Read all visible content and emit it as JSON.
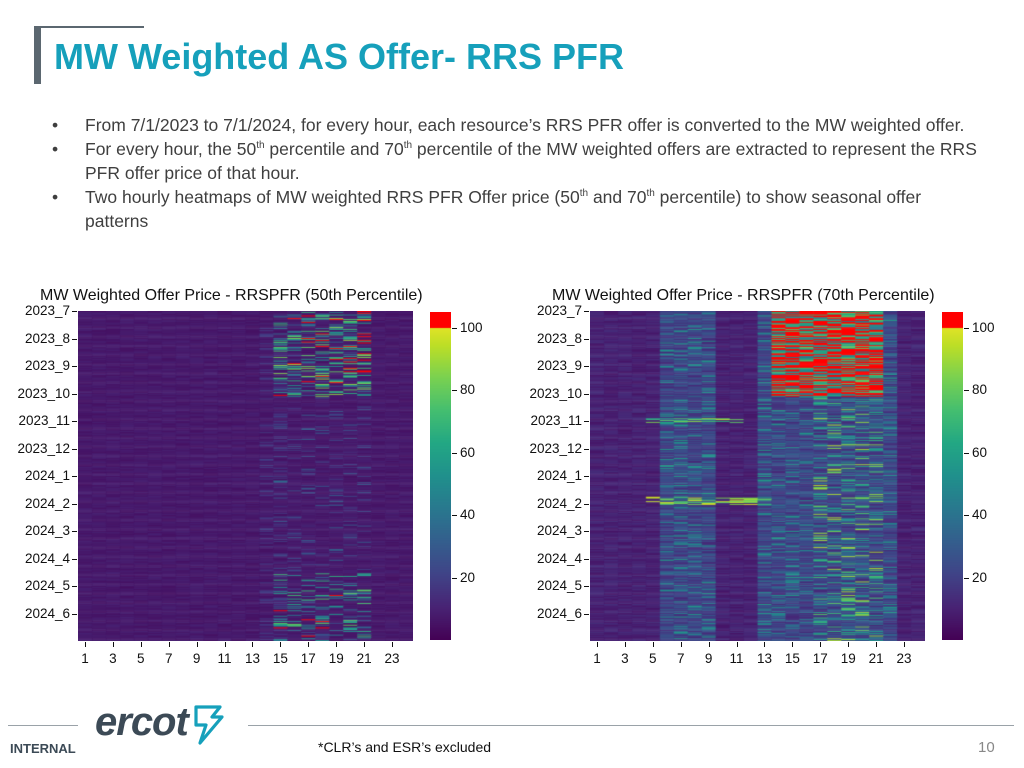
{
  "slide": {
    "title": "MW Weighted AS Offer- RRS PFR",
    "bullets": [
      {
        "pre": "From 7/1/2023 to 7/1/2024, for every hour, each resource’s RRS PFR offer is converted to the MW weighted offer."
      },
      {
        "pre": "For every hour, the 50",
        "sup1": "th",
        "mid": " percentile and 70",
        "sup2": "th",
        "post": " percentile of the MW weighted offers are extracted to represent the RRS PFR offer price of that hour."
      },
      {
        "pre": "Two hourly heatmaps of MW weighted RRS PFR Offer price (50",
        "sup1": "th",
        "mid": " and 70",
        "sup2": "th",
        "post": " percentile) to show seasonal offer patterns"
      }
    ],
    "bullet_symbol": "•",
    "footer": {
      "logo_text": "ercot",
      "internal_label": "INTERNAL",
      "note": "*CLR’s and ESR’s excluded",
      "page_number": "10"
    }
  },
  "chart_data": [
    {
      "type": "heatmap",
      "title": "MW Weighted Offer Price - RRSPFR (50th Percentile)",
      "y_tick_labels": [
        "2023_7",
        "2023_8",
        "2023_9",
        "2023_10",
        "2023_11",
        "2023_12",
        "2024_1",
        "2024_2",
        "2024_3",
        "2024_4",
        "2024_5",
        "2024_6"
      ],
      "x_tick_labels": [
        "1",
        "3",
        "5",
        "7",
        "9",
        "11",
        "13",
        "15",
        "17",
        "19",
        "21",
        "23"
      ],
      "x_range": [
        1,
        24
      ],
      "colorbar_ticks": [
        20,
        40,
        60,
        80,
        100
      ],
      "color_range": [
        0,
        105
      ],
      "colormap": "viridis, values above 100 in red",
      "pattern": "mostly low (~5-15) all hours; elevated offers concentrated in hours 15-21, strongest Aug-Sep 2023 (up to ~100+) and late spring 2024"
    },
    {
      "type": "heatmap",
      "title": "MW Weighted Offer Price - RRSPFR (70th Percentile)",
      "y_tick_labels": [
        "2023_7",
        "2023_8",
        "2023_9",
        "2023_10",
        "2023_11",
        "2023_12",
        "2024_1",
        "2024_2",
        "2024_3",
        "2024_4",
        "2024_5",
        "2024_6"
      ],
      "x_tick_labels": [
        "1",
        "3",
        "5",
        "7",
        "9",
        "11",
        "13",
        "15",
        "17",
        "19",
        "21",
        "23"
      ],
      "x_range": [
        1,
        24
      ],
      "colorbar_ticks": [
        20,
        40,
        60,
        80,
        100
      ],
      "color_range": [
        0,
        105
      ],
      "colormap": "viridis, values above 100 in red",
      "pattern": "low overnight; elevated in hours 6-9 and 13-22; above 100 during hours 14-21 in Aug-Sep 2023"
    }
  ],
  "colors": {
    "title": "#16a0bb",
    "text": "#3f3f3f",
    "high_value": "#ff0000"
  }
}
